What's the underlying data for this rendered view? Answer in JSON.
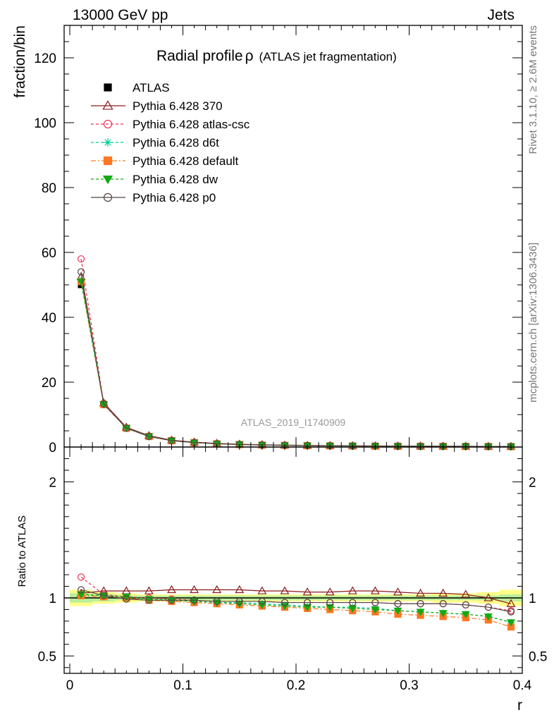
{
  "header": {
    "left": "13000 GeV pp",
    "right": "Jets"
  },
  "side_labels": {
    "top": "Rivet 3.1.10, ≥ 2.6M events",
    "bottom": "mcplots.cern.ch [arXiv:1306.3436]"
  },
  "watermark": "ATLAS_2019_I1740909",
  "colors": {
    "ATLAS": "#000000",
    "p370": "#8b1a1a",
    "atlascsc": "#ee3355",
    "d6t": "#00cc99",
    "default": "#ff7722",
    "dw": "#11aa11",
    "p0": "#554444",
    "band_yellow": "#ffff88",
    "band_green": "#bbee99"
  },
  "chart_data": [
    {
      "type": "line",
      "title": "Radial profile",
      "title_symbol": "ρ",
      "subtitle": "(ATLAS jet fragmentation)",
      "ylabel": "fraction/bin",
      "xlim": [
        -0.005,
        0.4
      ],
      "ylim": [
        0,
        130
      ],
      "yticks": [
        0,
        20,
        40,
        60,
        80,
        100,
        120
      ],
      "legend_position": "top-left",
      "x": [
        0.01,
        0.03,
        0.05,
        0.07,
        0.09,
        0.11,
        0.13,
        0.15,
        0.17,
        0.19,
        0.21,
        0.23,
        0.25,
        0.27,
        0.29,
        0.31,
        0.33,
        0.35,
        0.37,
        0.39
      ],
      "series": [
        {
          "name": "ATLAS",
          "key": "ATLAS",
          "values": [
            50,
            13,
            5.8,
            3.3,
            2.0,
            1.4,
            1.05,
            0.8,
            0.65,
            0.55,
            0.47,
            0.41,
            0.36,
            0.32,
            0.29,
            0.26,
            0.24,
            0.22,
            0.2,
            0.18
          ]
        },
        {
          "name": "Pythia 6.428 370",
          "key": "p370",
          "values": [
            52.5,
            13.6,
            6.1,
            3.5,
            2.1,
            1.5,
            1.13,
            0.86,
            0.7,
            0.59,
            0.5,
            0.44,
            0.38,
            0.34,
            0.3,
            0.27,
            0.25,
            0.23,
            0.2,
            0.17
          ]
        },
        {
          "name": "Pythia 6.428 atlas-csc",
          "key": "atlascsc",
          "values": [
            58,
            13.5,
            5.9,
            3.3,
            2.0,
            1.38,
            1.0,
            0.77,
            0.62,
            0.52,
            0.44,
            0.38,
            0.33,
            0.29,
            0.26,
            0.23,
            0.21,
            0.19,
            0.17,
            0.15
          ]
        },
        {
          "name": "Pythia 6.428 d6t",
          "key": "d6t",
          "values": [
            51.5,
            13.2,
            5.9,
            3.3,
            1.96,
            1.36,
            1.0,
            0.77,
            0.62,
            0.52,
            0.44,
            0.38,
            0.33,
            0.29,
            0.26,
            0.23,
            0.21,
            0.19,
            0.17,
            0.14
          ]
        },
        {
          "name": "Pythia 6.428 default",
          "key": "default",
          "values": [
            51.0,
            13.1,
            5.8,
            3.25,
            1.95,
            1.34,
            0.99,
            0.75,
            0.6,
            0.5,
            0.43,
            0.37,
            0.32,
            0.28,
            0.25,
            0.22,
            0.2,
            0.18,
            0.16,
            0.13
          ]
        },
        {
          "name": "Pythia 6.428 dw",
          "key": "dw",
          "values": [
            51.0,
            13.2,
            5.9,
            3.3,
            1.96,
            1.36,
            1.0,
            0.77,
            0.62,
            0.52,
            0.44,
            0.38,
            0.33,
            0.29,
            0.26,
            0.23,
            0.21,
            0.19,
            0.17,
            0.14
          ]
        },
        {
          "name": "Pythia 6.428 p0",
          "key": "p0",
          "values": [
            54.0,
            13.3,
            5.8,
            3.25,
            1.96,
            1.37,
            1.02,
            0.78,
            0.63,
            0.53,
            0.45,
            0.39,
            0.35,
            0.31,
            0.28,
            0.25,
            0.23,
            0.21,
            0.18,
            0.16
          ]
        }
      ]
    },
    {
      "type": "line",
      "ylabel": "Ratio to ATLAS",
      "xlabel": "r",
      "xlim": [
        -0.005,
        0.4
      ],
      "ylim": [
        0.35,
        2.3
      ],
      "yticks": [
        0.5,
        1,
        2
      ],
      "ytick_labels": [
        "0.5",
        "1",
        "2"
      ],
      "xticks": [
        0,
        0.1,
        0.2,
        0.3,
        0.4
      ],
      "xtick_labels": [
        "0",
        "0.1",
        "0.2",
        "0.3",
        "0.4"
      ],
      "x": [
        0.01,
        0.03,
        0.05,
        0.07,
        0.09,
        0.11,
        0.13,
        0.15,
        0.17,
        0.19,
        0.21,
        0.23,
        0.25,
        0.27,
        0.29,
        0.31,
        0.33,
        0.35,
        0.37,
        0.39
      ],
      "band_green": [
        0.04,
        0.03,
        0.02,
        0.02,
        0.02,
        0.02,
        0.02,
        0.02,
        0.02,
        0.02,
        0.02,
        0.02,
        0.02,
        0.02,
        0.02,
        0.02,
        0.02,
        0.02,
        0.02,
        0.03
      ],
      "band_yellow": [
        0.07,
        0.05,
        0.04,
        0.03,
        0.03,
        0.03,
        0.03,
        0.03,
        0.03,
        0.03,
        0.03,
        0.03,
        0.03,
        0.03,
        0.03,
        0.03,
        0.04,
        0.04,
        0.05,
        0.07
      ],
      "series": [
        {
          "name": "Pythia 6.428 370",
          "key": "p370",
          "values": [
            1.04,
            1.06,
            1.06,
            1.06,
            1.07,
            1.07,
            1.07,
            1.07,
            1.06,
            1.06,
            1.05,
            1.05,
            1.06,
            1.06,
            1.05,
            1.04,
            1.04,
            1.03,
            1.0,
            0.95
          ]
        },
        {
          "name": "Pythia 6.428 atlas-csc",
          "key": "atlascsc",
          "values": [
            1.18,
            1.03,
            1.01,
            1.0,
            0.99,
            0.98,
            0.97,
            0.97,
            0.97,
            0.96,
            0.96,
            0.96,
            0.96,
            0.96,
            0.95,
            0.95,
            0.95,
            0.94,
            0.92,
            0.89
          ]
        },
        {
          "name": "Pythia 6.428 d6t",
          "key": "d6t",
          "values": [
            1.03,
            1.02,
            1.01,
            0.99,
            0.98,
            0.97,
            0.96,
            0.96,
            0.95,
            0.94,
            0.93,
            0.92,
            0.92,
            0.91,
            0.89,
            0.88,
            0.87,
            0.86,
            0.84,
            0.79
          ]
        },
        {
          "name": "Pythia 6.428 default",
          "key": "default",
          "values": [
            1.02,
            1.01,
            1.0,
            0.98,
            0.97,
            0.96,
            0.95,
            0.94,
            0.93,
            0.92,
            0.91,
            0.9,
            0.89,
            0.88,
            0.86,
            0.85,
            0.84,
            0.83,
            0.81,
            0.75
          ]
        },
        {
          "name": "Pythia 6.428 dw",
          "key": "dw",
          "values": [
            1.03,
            1.02,
            1.01,
            0.99,
            0.98,
            0.97,
            0.96,
            0.95,
            0.94,
            0.93,
            0.92,
            0.92,
            0.91,
            0.9,
            0.89,
            0.88,
            0.87,
            0.86,
            0.84,
            0.79
          ]
        },
        {
          "name": "Pythia 6.428 p0",
          "key": "p0",
          "values": [
            1.07,
            1.02,
            0.99,
            0.98,
            0.98,
            0.98,
            0.97,
            0.97,
            0.97,
            0.96,
            0.96,
            0.96,
            0.96,
            0.96,
            0.95,
            0.95,
            0.95,
            0.94,
            0.92,
            0.88
          ]
        }
      ]
    }
  ]
}
